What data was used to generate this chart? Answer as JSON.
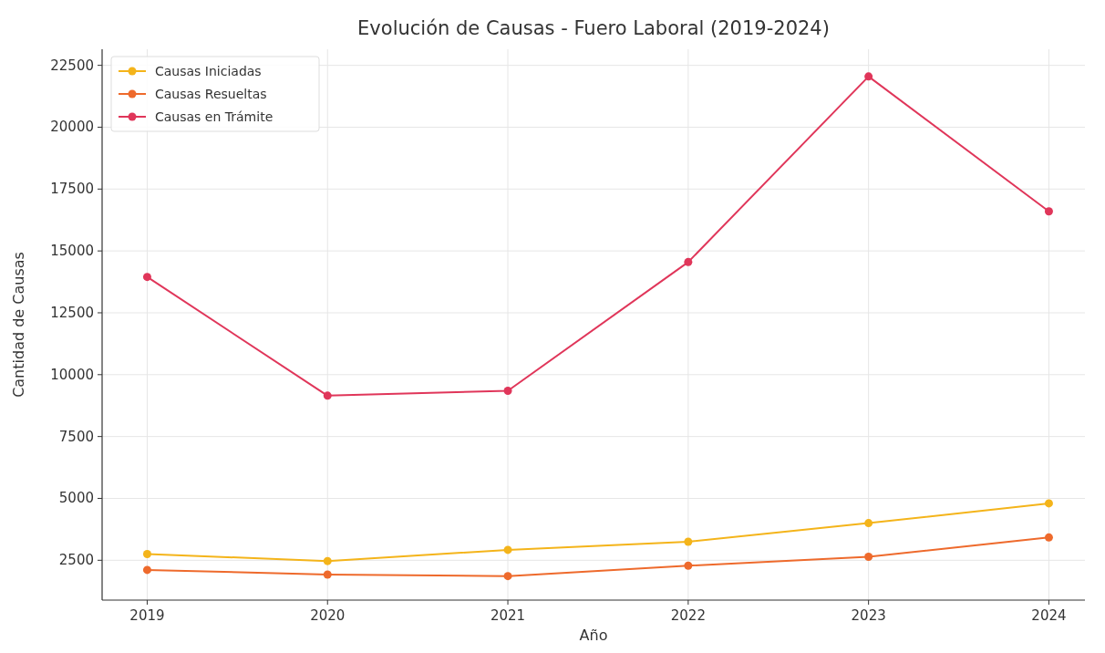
{
  "chart_data": {
    "type": "line",
    "title": "Evolución de Causas - Fuero Laboral (2019-2024)",
    "xlabel": "Año",
    "ylabel": "Cantidad de Causas",
    "x": [
      2019,
      2020,
      2021,
      2022,
      2023,
      2024
    ],
    "xlim": [
      2018.75,
      2024.2
    ],
    "xticks": [
      2019,
      2020,
      2021,
      2022,
      2023,
      2024
    ],
    "ylim": [
      890,
      23150
    ],
    "yticks": [
      2500,
      5000,
      7500,
      10000,
      12500,
      15000,
      17500,
      20000,
      22500
    ],
    "series": [
      {
        "name": "Causas Iniciadas",
        "color": "#f4b41a",
        "values": [
          2750,
          2470,
          2920,
          3250,
          4000,
          4800
        ]
      },
      {
        "name": "Causas Resueltas",
        "color": "#ee6a2c",
        "values": [
          2110,
          1920,
          1860,
          2280,
          2640,
          3420
        ]
      },
      {
        "name": "Causas en Trámite",
        "color": "#e0365a",
        "values": [
          13950,
          9150,
          9350,
          14550,
          22050,
          16600
        ]
      }
    ],
    "grid": true,
    "legend": "top left",
    "marker": "circle",
    "line_style": "solid"
  }
}
